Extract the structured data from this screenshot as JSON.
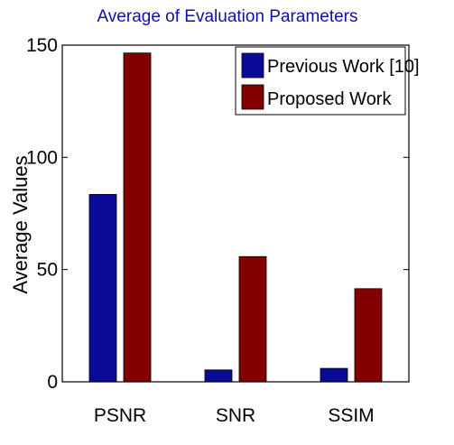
{
  "chart_data": {
    "type": "bar",
    "title": "Average of Evaluation Parameters",
    "xlabel": "",
    "ylabel": "Average Values",
    "categories": [
      "PSNR",
      "SNR",
      "SSIM"
    ],
    "series": [
      {
        "name": "Previous Work [10]",
        "values": [
          83.5,
          5.3,
          6.0
        ],
        "color": "#0a0a96"
      },
      {
        "name": "Proposed Work",
        "values": [
          146.5,
          55.8,
          41.5
        ],
        "color": "#820000"
      }
    ],
    "ylim": [
      0,
      150
    ],
    "yticks": [
      0,
      50,
      100,
      150
    ],
    "grid": false,
    "legend_position": "top-right"
  }
}
